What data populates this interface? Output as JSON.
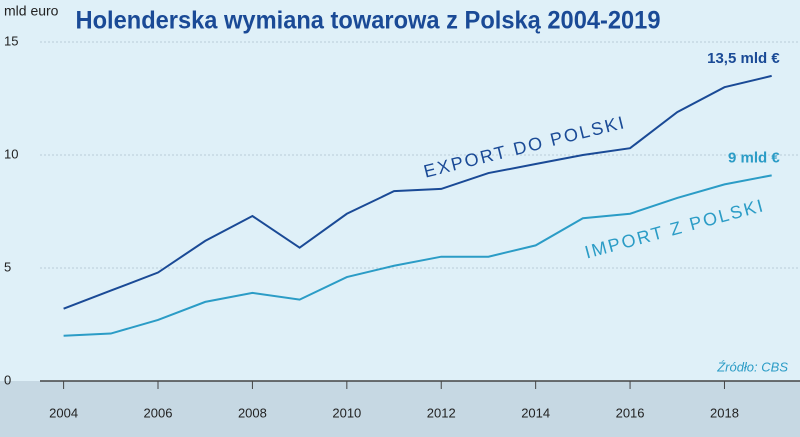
{
  "chart_data": {
    "type": "line",
    "title": "Holenderska wymiana towarowa z Polską 2004-2019",
    "y_label": "mld euro",
    "source": "Źródło: CBS",
    "x": [
      2004,
      2005,
      2006,
      2007,
      2008,
      2009,
      2010,
      2011,
      2012,
      2013,
      2014,
      2015,
      2016,
      2017,
      2018,
      2019
    ],
    "xlim": [
      2003.5,
      2019.6
    ],
    "xticks": [
      2004,
      2006,
      2008,
      2010,
      2012,
      2014,
      2016,
      2018
    ],
    "ylim": [
      0,
      15
    ],
    "yticks": [
      0,
      5,
      10,
      15
    ],
    "grid": true,
    "series": [
      {
        "name": "EXPORT DO POLSKI",
        "color": "#1a4a96",
        "values": [
          3.2,
          4.0,
          4.8,
          6.2,
          7.3,
          5.9,
          7.4,
          8.4,
          8.5,
          9.2,
          9.6,
          10.0,
          10.3,
          11.9,
          13.0,
          13.5
        ],
        "value_labels": [
          null,
          null,
          null,
          null,
          null,
          null,
          null,
          null,
          null,
          null,
          null,
          null,
          null,
          null,
          null,
          "13,5 mld €"
        ]
      },
      {
        "name": "IMPORT Z POLSKI",
        "color": "#2b9cc6",
        "values": [
          2.0,
          2.1,
          2.7,
          3.5,
          3.9,
          3.6,
          4.6,
          5.1,
          5.5,
          5.5,
          6.0,
          7.2,
          7.4,
          8.1,
          8.7,
          9.1
        ],
        "value_labels": [
          null,
          null,
          null,
          null,
          null,
          null,
          null,
          null,
          null,
          null,
          null,
          null,
          null,
          null,
          null,
          "9 mld €"
        ]
      }
    ]
  }
}
